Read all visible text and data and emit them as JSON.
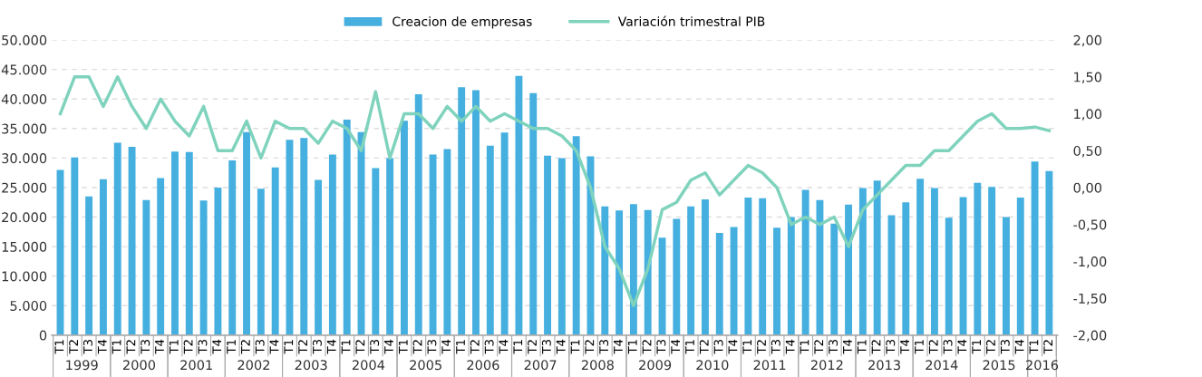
{
  "chart_data": {
    "type": "bar",
    "categories": [
      "T1",
      "T2",
      "T3",
      "T4",
      "T1",
      "T2",
      "T3",
      "T4",
      "T1",
      "T2",
      "T3",
      "T4",
      "T1",
      "T2",
      "T3",
      "T4",
      "T1",
      "T2",
      "T3",
      "T4",
      "T1",
      "T2",
      "T3",
      "T4",
      "T1",
      "T2",
      "T3",
      "T4",
      "T1",
      "T2",
      "T3",
      "T4",
      "T1",
      "T2",
      "T3",
      "T4",
      "T1",
      "T2",
      "T3",
      "T4",
      "T1",
      "T2",
      "T3",
      "T4",
      "T1",
      "T2",
      "T3",
      "T4",
      "T1",
      "T2",
      "T3",
      "T4",
      "T1",
      "T2",
      "T3",
      "T4",
      "T1",
      "T2",
      "T3",
      "T4",
      "T1",
      "T2",
      "T3",
      "T4",
      "T1",
      "T2",
      "T3",
      "T4",
      "T1",
      "T2"
    ],
    "annotations": [
      "1999",
      "2000",
      "2001",
      "2002",
      "2003",
      "2004",
      "2005",
      "2006",
      "2007",
      "2008",
      "2009",
      "2010",
      "2011",
      "2012",
      "2013",
      "2014",
      "2015",
      "2016"
    ],
    "series": [
      {
        "name": "Creacion de empresas",
        "color": "#45afdf",
        "values": [
          28000,
          30100,
          23500,
          26400,
          32600,
          31900,
          22900,
          26600,
          31100,
          31000,
          22800,
          25000,
          29600,
          34400,
          24800,
          28400,
          33100,
          33400,
          26300,
          30600,
          36500,
          34400,
          28300,
          30000,
          36300,
          40800,
          30600,
          31500,
          42000,
          41500,
          32100,
          34300,
          43900,
          41000,
          30400,
          30000,
          33700,
          30300,
          21800,
          21100,
          22200,
          21200,
          16500,
          19700,
          21800,
          23000,
          17300,
          18300,
          23300,
          23200,
          18200,
          20000,
          24600,
          22900,
          18900,
          22100,
          24900,
          26200,
          20300,
          22500,
          26500,
          24900,
          19900,
          23400,
          25800,
          25100,
          20000,
          23300,
          29400,
          27800
        ]
      },
      {
        "name": "Variación trimestral PIB",
        "type": "line",
        "axis": "y2",
        "color": "#7fd3bd",
        "values": [
          1.0,
          1.5,
          1.5,
          1.1,
          1.5,
          1.1,
          0.8,
          1.2,
          0.9,
          0.7,
          1.1,
          0.5,
          0.5,
          0.9,
          0.4,
          0.9,
          0.8,
          0.8,
          0.6,
          0.9,
          0.8,
          0.5,
          1.3,
          0.4,
          1.0,
          1.0,
          0.8,
          1.1,
          0.9,
          1.1,
          0.9,
          1.0,
          0.9,
          0.8,
          0.8,
          0.7,
          0.5,
          0.0,
          -0.8,
          -1.1,
          -1.6,
          -1.1,
          -0.3,
          -0.2,
          0.1,
          0.2,
          -0.1,
          0.1,
          0.3,
          0.2,
          0.0,
          -0.5,
          -0.4,
          -0.5,
          -0.4,
          -0.8,
          -0.3,
          -0.1,
          0.1,
          0.3,
          0.3,
          0.5,
          0.5,
          0.7,
          0.9,
          1.0,
          0.8,
          0.8,
          0.82,
          0.77
        ]
      }
    ],
    "ylim": [
      0,
      50000
    ],
    "yticks": [
      {
        "value": 0,
        "label": "0"
      },
      {
        "value": 5000,
        "label": "5.000"
      },
      {
        "value": 10000,
        "label": "10.000"
      },
      {
        "value": 15000,
        "label": "15.000"
      },
      {
        "value": 20000,
        "label": "20.000"
      },
      {
        "value": 25000,
        "label": "25.000"
      },
      {
        "value": 30000,
        "label": "30.000"
      },
      {
        "value": 35000,
        "label": "35.000"
      },
      {
        "value": 40000,
        "label": "40.000"
      },
      {
        "value": 45000,
        "label": "45.000"
      },
      {
        "value": 50000,
        "label": "50.000"
      }
    ],
    "y2lim": [
      -2,
      2
    ],
    "y2ticks": [
      {
        "value": -2,
        "label": "-2,00"
      },
      {
        "value": -1.5,
        "label": "-1,50"
      },
      {
        "value": -1,
        "label": "-1,00"
      },
      {
        "value": -0.5,
        "label": "-0,50"
      },
      {
        "value": 0,
        "label": "0,00"
      },
      {
        "value": 0.5,
        "label": "0,50"
      },
      {
        "value": 1,
        "label": "1,00"
      },
      {
        "value": 1.5,
        "label": "1,50"
      },
      {
        "value": 2,
        "label": "2,00"
      }
    ],
    "grid": "y",
    "legend": "top",
    "marker": "none",
    "line_style": "solid"
  }
}
